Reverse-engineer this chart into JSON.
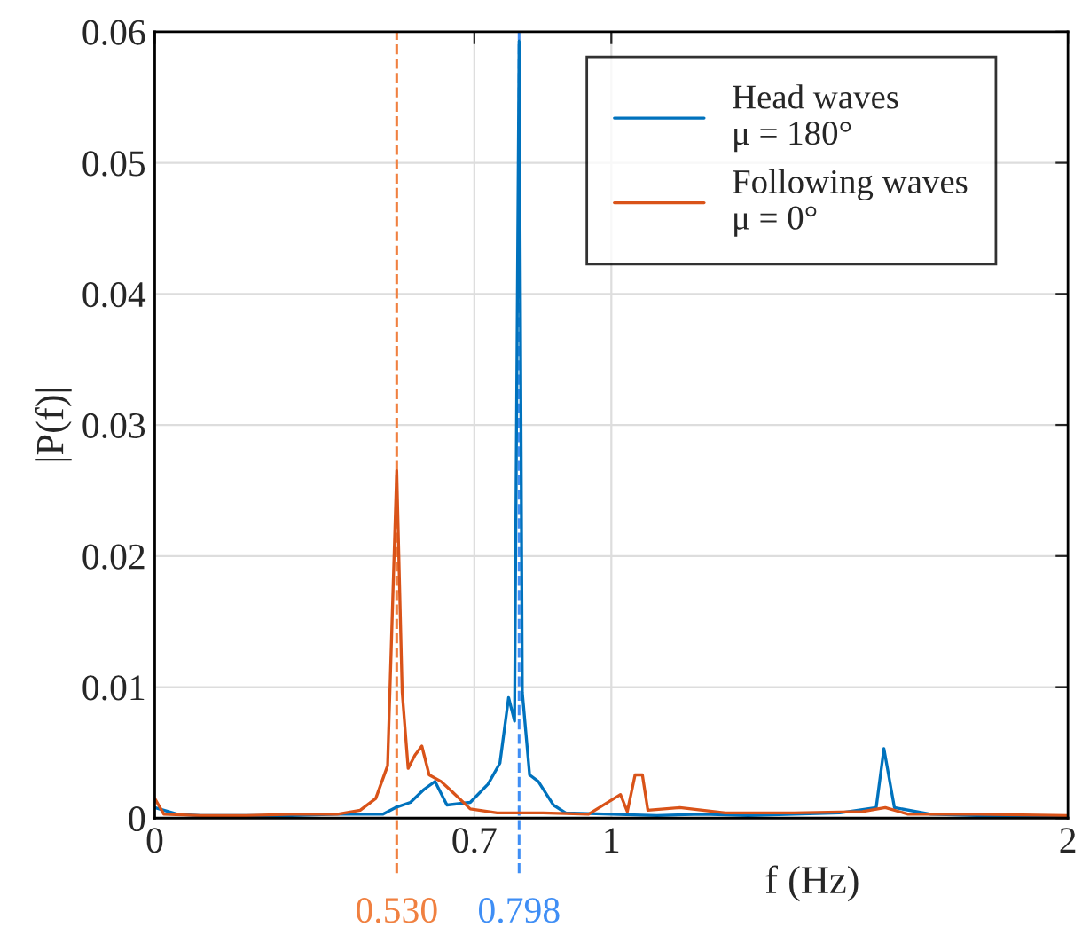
{
  "chart_data": {
    "type": "line",
    "xlabel": "f (Hz)",
    "ylabel": "|P(f)|",
    "xlim": [
      0,
      2
    ],
    "xticks": [
      0,
      0.7,
      1,
      2
    ],
    "ylim": [
      0,
      0.06
    ],
    "yticks": [
      0,
      0.01,
      0.02,
      0.03,
      0.04,
      0.05,
      0.06
    ],
    "grid": true,
    "legend": "top right",
    "line_style": "solid",
    "marker": "none",
    "series": [
      {
        "name": "Head waves\nμ = 180°",
        "color": "#0072bd",
        "x": [
          0,
          0.05,
          0.1,
          0.2,
          0.3,
          0.4,
          0.5,
          0.527,
          0.56,
          0.59,
          0.614,
          0.64,
          0.691,
          0.73,
          0.756,
          0.775,
          0.788,
          0.798,
          0.805,
          0.821,
          0.84,
          0.873,
          0.9,
          1.0,
          1.1,
          1.2,
          1.3,
          1.4,
          1.5,
          1.58,
          1.597,
          1.62,
          1.7,
          1.8,
          1.9,
          2.0
        ],
        "values": [
          0.0008,
          0.0003,
          0.0002,
          0.0002,
          0.0002,
          0.0003,
          0.0003,
          0.0008,
          0.0012,
          0.0022,
          0.0028,
          0.001,
          0.0012,
          0.0026,
          0.0042,
          0.0092,
          0.0074,
          0.0593,
          0.0096,
          0.0033,
          0.0028,
          0.001,
          0.0004,
          0.0003,
          0.0002,
          0.0003,
          0.0002,
          0.0003,
          0.0004,
          0.0008,
          0.0053,
          0.0008,
          0.0003,
          0.0002,
          0.0002,
          0.0001
        ]
      },
      {
        "name": "Following waves\nμ = 0°",
        "color": "#d95319",
        "x": [
          0,
          0.02,
          0.1,
          0.2,
          0.3,
          0.4,
          0.45,
          0.484,
          0.51,
          0.53,
          0.542,
          0.555,
          0.57,
          0.585,
          0.601,
          0.627,
          0.652,
          0.691,
          0.75,
          0.85,
          0.95,
          1.02,
          1.035,
          1.052,
          1.068,
          1.08,
          1.15,
          1.25,
          1.4,
          1.55,
          1.6,
          1.65,
          1.8,
          2.0
        ],
        "values": [
          0.0015,
          0.0003,
          0.0002,
          0.0002,
          0.0003,
          0.0003,
          0.0006,
          0.0015,
          0.004,
          0.0265,
          0.0096,
          0.0038,
          0.0048,
          0.0055,
          0.0033,
          0.0028,
          0.002,
          0.0007,
          0.0004,
          0.0004,
          0.0003,
          0.0018,
          0.0005,
          0.0033,
          0.0033,
          0.0006,
          0.0008,
          0.0004,
          0.0004,
          0.0005,
          0.0008,
          0.0003,
          0.0003,
          0.0002
        ]
      }
    ],
    "ref_lines": [
      {
        "axis": "x",
        "value": 0.53,
        "label": "0.530",
        "color": "#f08040",
        "line_style": "dashed"
      },
      {
        "axis": "x",
        "value": 0.798,
        "label": "0.798",
        "color": "#3f8ef5",
        "line_style": "dashed"
      }
    ]
  }
}
